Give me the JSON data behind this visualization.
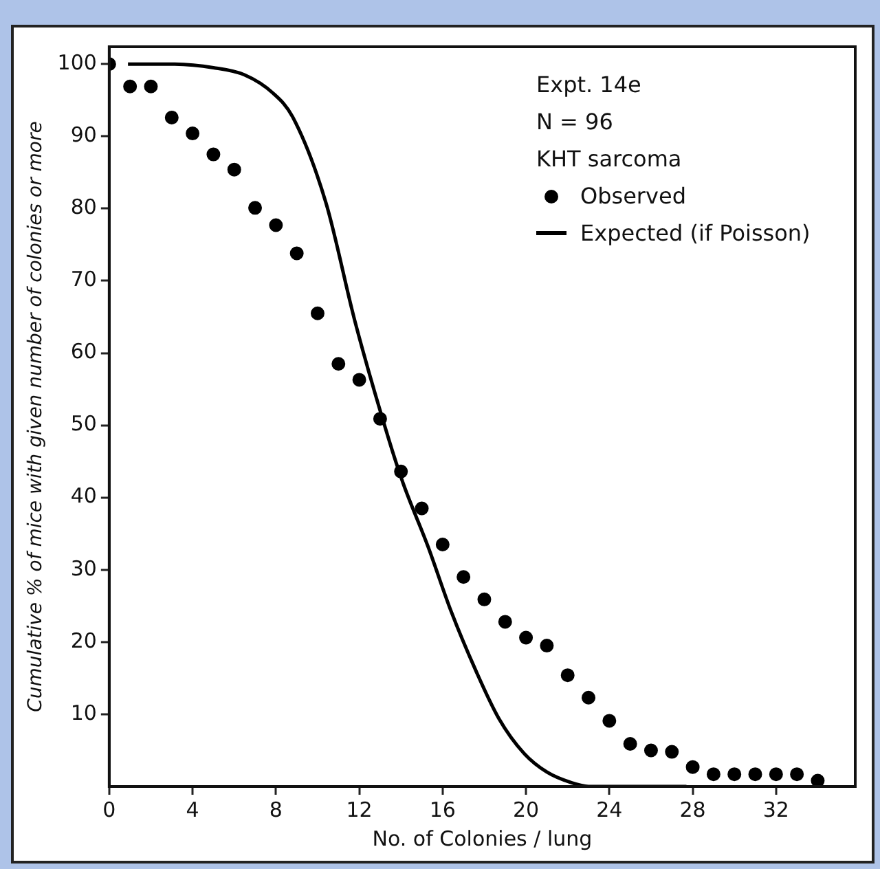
{
  "chart_data": {
    "type": "scatter",
    "xlabel": "No. of Colonies / lung",
    "ylabel": "Cumulative % of mice with given number of colonies or more",
    "annotations": [
      "Expt. 14e",
      "N = 96",
      "KHT sarcoma"
    ],
    "xlim": [
      0,
      35.8
    ],
    "ylim": [
      0,
      102.4
    ],
    "xticks": [
      0,
      4,
      8,
      12,
      16,
      20,
      24,
      28,
      32
    ],
    "yticks": [
      10,
      20,
      30,
      40,
      50,
      60,
      70,
      80,
      90,
      100
    ],
    "grid": false,
    "legend": "top right",
    "marker": "circle",
    "series": [
      {
        "name": "Observed",
        "type": "scatter",
        "color": "#000000",
        "x": [
          0,
          1,
          2,
          3,
          4,
          5,
          6,
          7,
          8,
          9,
          10,
          11,
          12,
          13,
          14,
          15,
          16,
          17,
          18,
          19,
          20,
          21,
          22,
          23,
          24,
          25,
          26,
          27,
          28,
          29,
          30,
          31,
          32,
          33,
          34
        ],
        "values": [
          100,
          96.9,
          96.9,
          92.6,
          90.4,
          87.5,
          85.4,
          80.1,
          77.7,
          73.8,
          65.5,
          58.5,
          56.3,
          50.9,
          43.6,
          38.5,
          33.5,
          29,
          25.9,
          22.8,
          20.6,
          19.5,
          15.4,
          12.3,
          9.1,
          5.9,
          5,
          4.8,
          2.7,
          1.7,
          1.7,
          1.7,
          1.7,
          1.7,
          0.8
        ]
      },
      {
        "name": "Expected (if Poisson)",
        "type": "line",
        "color": "#000000",
        "marker": "none",
        "line_style": "solid",
        "x": [
          0.9,
          3,
          5,
          6.5,
          7.85,
          8.8,
          10.4,
          11.8,
          13.4,
          14.1,
          15.3,
          16.4,
          17.6,
          18.7,
          19.9,
          21,
          22.2,
          23,
          27.7
        ],
        "values": [
          100,
          100,
          99.5,
          98.5,
          96,
          92.7,
          80.8,
          64.3,
          48.2,
          42,
          33.2,
          24.3,
          16,
          9.4,
          4.6,
          2,
          0.5,
          0,
          0
        ]
      }
    ]
  }
}
